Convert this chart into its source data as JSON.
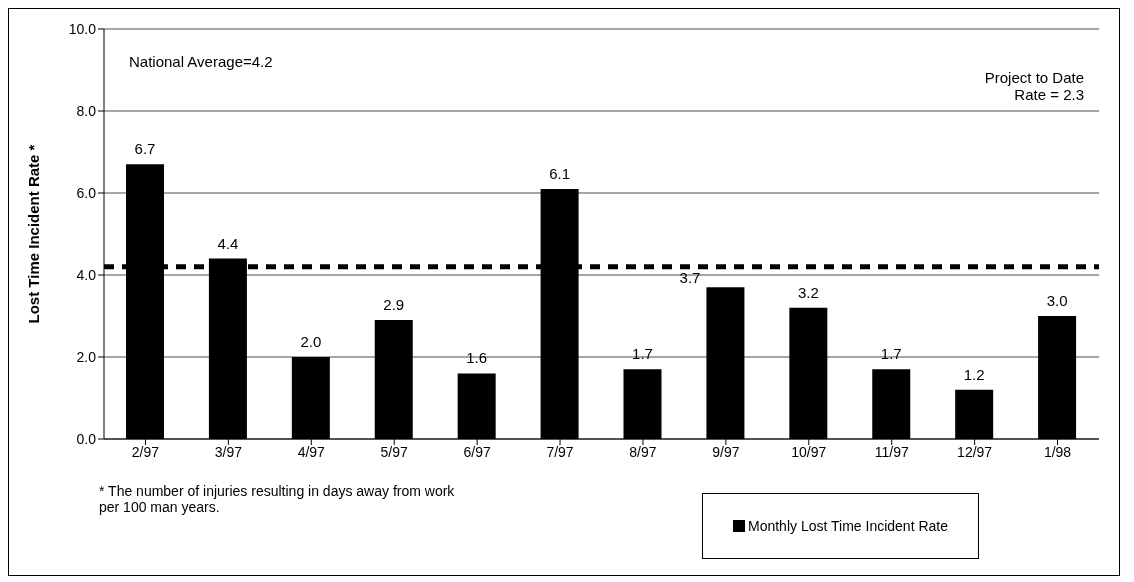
{
  "chart_data": {
    "type": "bar",
    "ylabel": "Lost Time Incident Rate *",
    "categories": [
      "2/97",
      "3/97",
      "4/97",
      "5/97",
      "6/97",
      "7/97",
      "8/97",
      "9/97",
      "10/97",
      "11/97",
      "12/97",
      "1/98"
    ],
    "series": [
      {
        "name": "Monthly Lost Time Incident Rate",
        "color": "#000000",
        "values": [
          6.7,
          4.4,
          2.0,
          2.9,
          1.6,
          6.1,
          1.7,
          3.7,
          3.2,
          1.7,
          1.2,
          3.0
        ]
      }
    ],
    "value_labels": [
      "6.7",
      "4.4",
      "2.0",
      "2.9",
      "1.6",
      "6.1",
      "1.7",
      "3.7",
      "3.2",
      "1.7",
      "1.2",
      "3.0"
    ],
    "ylim": [
      0,
      10
    ],
    "yticks": [
      {
        "value": 0,
        "label": "0.0"
      },
      {
        "value": 2,
        "label": "2.0"
      },
      {
        "value": 4,
        "label": "4.0"
      },
      {
        "value": 6,
        "label": "6.0"
      },
      {
        "value": 8,
        "label": "8.0"
      },
      {
        "value": 10,
        "label": "10.0"
      }
    ],
    "grid": "y",
    "ref_lines": [
      {
        "axis": "y",
        "value": 4.2,
        "color": "#000000",
        "line_style": "dashed"
      }
    ],
    "annotations": [
      "National Average=4.2",
      "Project to Date\nRate = 2.3",
      "* The number of injuries resulting in days away from work per 100 man years."
    ],
    "legend": "bottom right"
  }
}
